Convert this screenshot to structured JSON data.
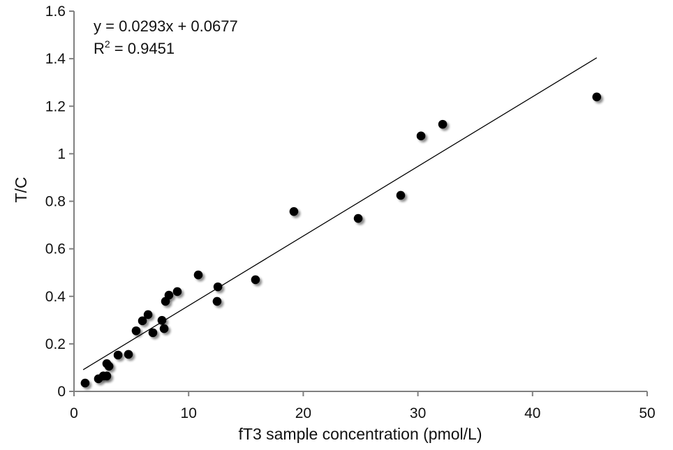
{
  "chart_data": {
    "type": "scatter",
    "title": "",
    "xlabel": "fT3 sample concentration (pmol/L)",
    "ylabel": "T/C",
    "xlim": [
      0,
      50
    ],
    "ylim": [
      0,
      1.6
    ],
    "xticks": [
      "0",
      "10",
      "20",
      "30",
      "40",
      "50"
    ],
    "yticks": [
      "0",
      "0.2",
      "0.4",
      "0.6",
      "0.8",
      "1",
      "1.2",
      "1.4",
      "1.6"
    ],
    "grid": false,
    "legend": "none",
    "points": [
      [
        0.97,
        0.035
      ],
      [
        2.13,
        0.053
      ],
      [
        2.56,
        0.065
      ],
      [
        2.86,
        0.065
      ],
      [
        2.86,
        0.117
      ],
      [
        3.05,
        0.106
      ],
      [
        3.84,
        0.153
      ],
      [
        4.75,
        0.156
      ],
      [
        5.42,
        0.255
      ],
      [
        5.97,
        0.297
      ],
      [
        6.46,
        0.323
      ],
      [
        6.88,
        0.247
      ],
      [
        7.67,
        0.299
      ],
      [
        7.86,
        0.264
      ],
      [
        7.98,
        0.379
      ],
      [
        8.28,
        0.405
      ],
      [
        9.01,
        0.42
      ],
      [
        10.84,
        0.49
      ],
      [
        12.48,
        0.379
      ],
      [
        12.55,
        0.44
      ],
      [
        15.83,
        0.47
      ],
      [
        19.18,
        0.757
      ],
      [
        24.79,
        0.728
      ],
      [
        28.5,
        0.825
      ],
      [
        30.27,
        1.075
      ],
      [
        32.16,
        1.124
      ],
      [
        45.6,
        1.239
      ]
    ],
    "trendline": {
      "slope": 0.0293,
      "intercept": 0.0677,
      "x_range": [
        0.8,
        45.6
      ]
    },
    "annotations": {
      "equation": "y = 0.0293x + 0.0677",
      "r2_prefix": "R",
      "r2_sup": "2",
      "r2_value": " = 0.9451"
    },
    "colors": {
      "points": "#000000",
      "axis": "#808080",
      "trendline": "#000000"
    }
  }
}
